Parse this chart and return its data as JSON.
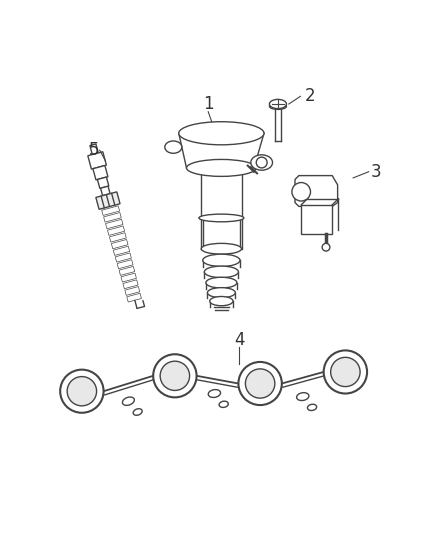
{
  "background_color": "#ffffff",
  "line_color": "#444444",
  "label_color": "#333333",
  "fig_width": 4.38,
  "fig_height": 5.33,
  "dpi": 100
}
